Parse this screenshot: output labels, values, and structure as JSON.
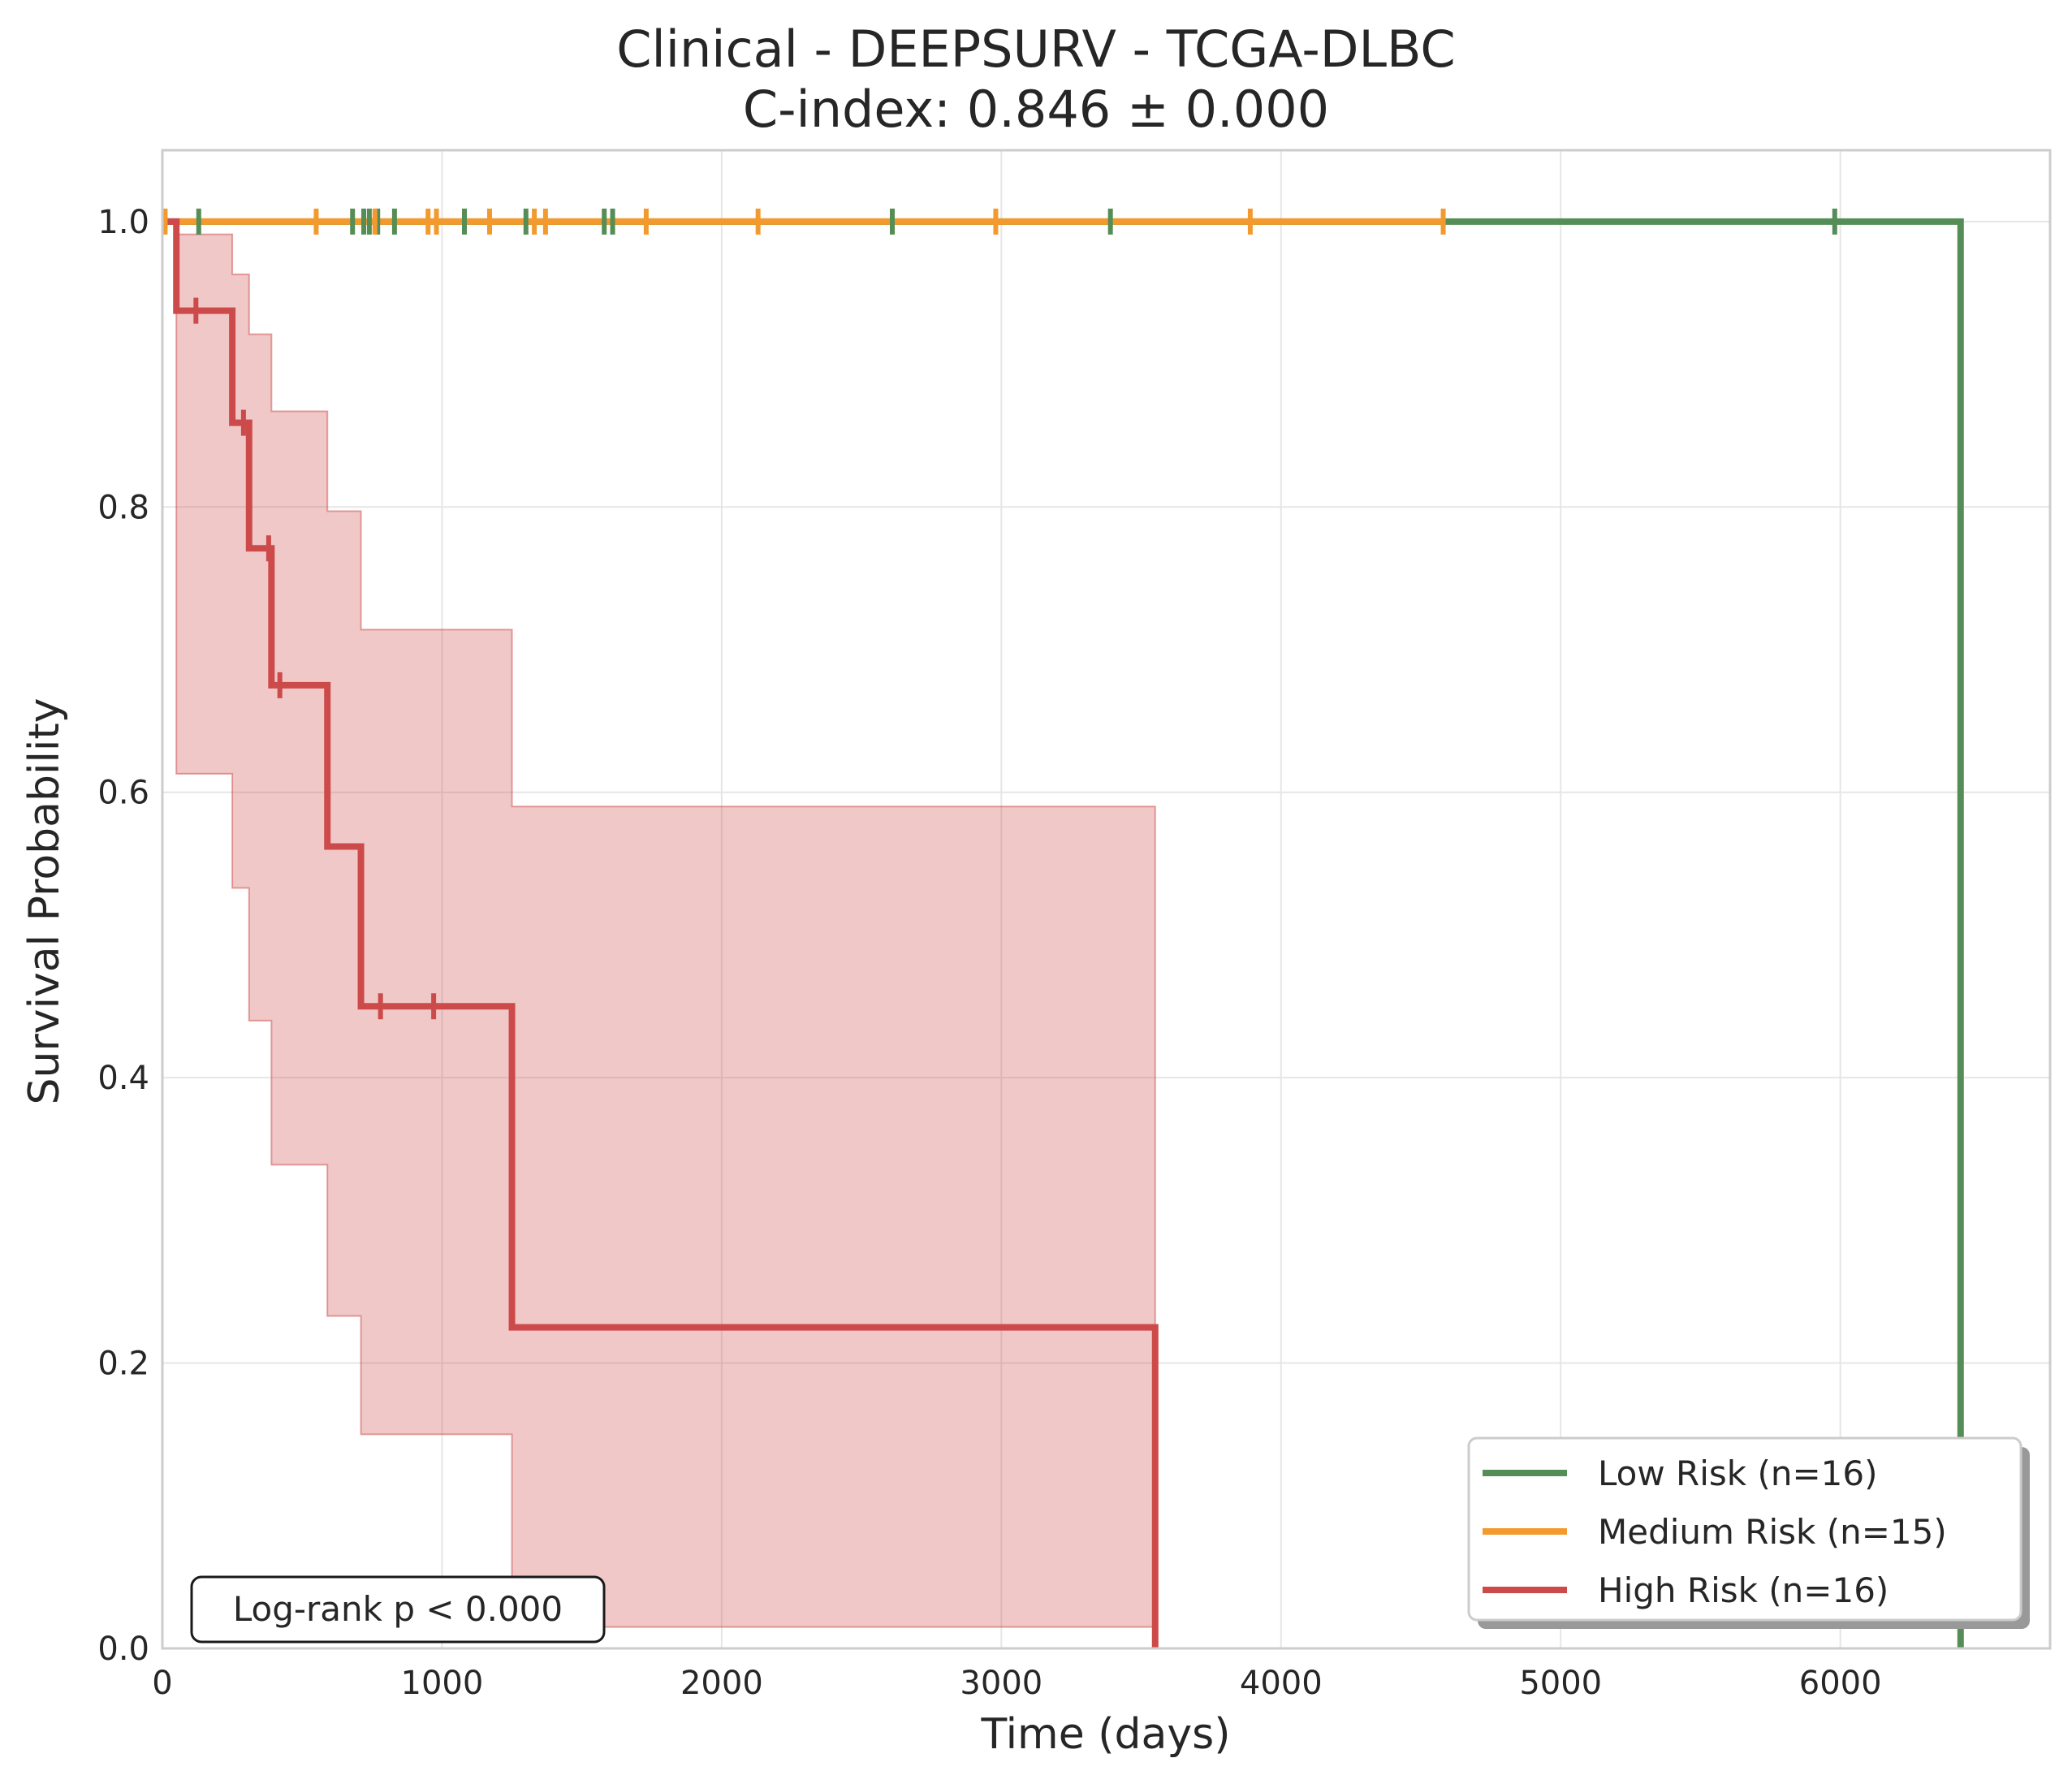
{
  "chart_data": {
    "type": "line",
    "title": "Clinical - DEEPSURV - TCGA-DLBC",
    "subtitle": "C-index: 0.846 ± 0.000",
    "xlabel": "Time (days)",
    "ylabel": "Survival Probability",
    "xlim": [
      0,
      6750
    ],
    "ylim": [
      0,
      1.05
    ],
    "xticks": [
      0,
      1000,
      2000,
      3000,
      4000,
      5000,
      6000
    ],
    "yticks": [
      0.0,
      0.2,
      0.4,
      0.6,
      0.8,
      1.0
    ],
    "xtick_labels": [
      "0",
      "1000",
      "2000",
      "3000",
      "4000",
      "5000",
      "6000"
    ],
    "ytick_labels": [
      "0.0",
      "0.2",
      "0.4",
      "0.6",
      "0.8",
      "1.0"
    ],
    "grid": true,
    "legend_position": "bottom-right",
    "annotation": "Log-rank p < 0.000",
    "series": [
      {
        "name": "Low Risk (n=16)",
        "color": "#548d55",
        "steps": [
          [
            0,
            1.0
          ],
          [
            6430,
            1.0
          ],
          [
            6430,
            0.0
          ]
        ],
        "censors": [
          [
            130,
            1.0
          ],
          [
            680,
            1.0
          ],
          [
            720,
            1.0
          ],
          [
            740,
            1.0
          ],
          [
            770,
            1.0
          ],
          [
            830,
            1.0
          ],
          [
            1080,
            1.0
          ],
          [
            1300,
            1.0
          ],
          [
            1580,
            1.0
          ],
          [
            1610,
            1.0
          ],
          [
            2610,
            1.0
          ],
          [
            3390,
            1.0
          ],
          [
            5980,
            1.0
          ]
        ]
      },
      {
        "name": "Medium Risk (n=15)",
        "color": "#f39a2e",
        "steps": [
          [
            0,
            1.0
          ],
          [
            4580,
            1.0
          ]
        ],
        "censors": [
          [
            10,
            1.0
          ],
          [
            550,
            1.0
          ],
          [
            760,
            1.0
          ],
          [
            950,
            1.0
          ],
          [
            980,
            1.0
          ],
          [
            1170,
            1.0
          ],
          [
            1330,
            1.0
          ],
          [
            1370,
            1.0
          ],
          [
            1730,
            1.0
          ],
          [
            2130,
            1.0
          ],
          [
            2980,
            1.0
          ],
          [
            3890,
            1.0
          ],
          [
            4580,
            1.0
          ]
        ]
      },
      {
        "name": "High Risk (n=16)",
        "color": "#cd4a4a",
        "steps": [
          [
            0,
            1.0
          ],
          [
            50,
            1.0
          ],
          [
            50,
            0.9375
          ],
          [
            250,
            0.9375
          ],
          [
            250,
            0.859
          ],
          [
            310,
            0.859
          ],
          [
            310,
            0.771
          ],
          [
            390,
            0.771
          ],
          [
            390,
            0.675
          ],
          [
            590,
            0.675
          ],
          [
            590,
            0.562
          ],
          [
            710,
            0.562
          ],
          [
            710,
            0.45
          ],
          [
            1250,
            0.45
          ],
          [
            1250,
            0.225
          ],
          [
            3550,
            0.225
          ],
          [
            3550,
            0.0
          ]
        ],
        "censors": [
          [
            120,
            0.9375
          ],
          [
            290,
            0.859
          ],
          [
            380,
            0.771
          ],
          [
            420,
            0.675
          ],
          [
            780,
            0.45
          ],
          [
            970,
            0.45
          ]
        ],
        "ci": [
          {
            "x0": 50,
            "x1": 250,
            "lo": 0.613,
            "hi": 0.991
          },
          {
            "x0": 250,
            "x1": 310,
            "lo": 0.533,
            "hi": 0.963
          },
          {
            "x0": 310,
            "x1": 390,
            "lo": 0.44,
            "hi": 0.921
          },
          {
            "x0": 390,
            "x1": 590,
            "lo": 0.339,
            "hi": 0.867
          },
          {
            "x0": 590,
            "x1": 710,
            "lo": 0.233,
            "hi": 0.797
          },
          {
            "x0": 710,
            "x1": 1250,
            "lo": 0.15,
            "hi": 0.714
          },
          {
            "x0": 1250,
            "x1": 3550,
            "lo": 0.015,
            "hi": 0.59
          }
        ]
      }
    ]
  }
}
